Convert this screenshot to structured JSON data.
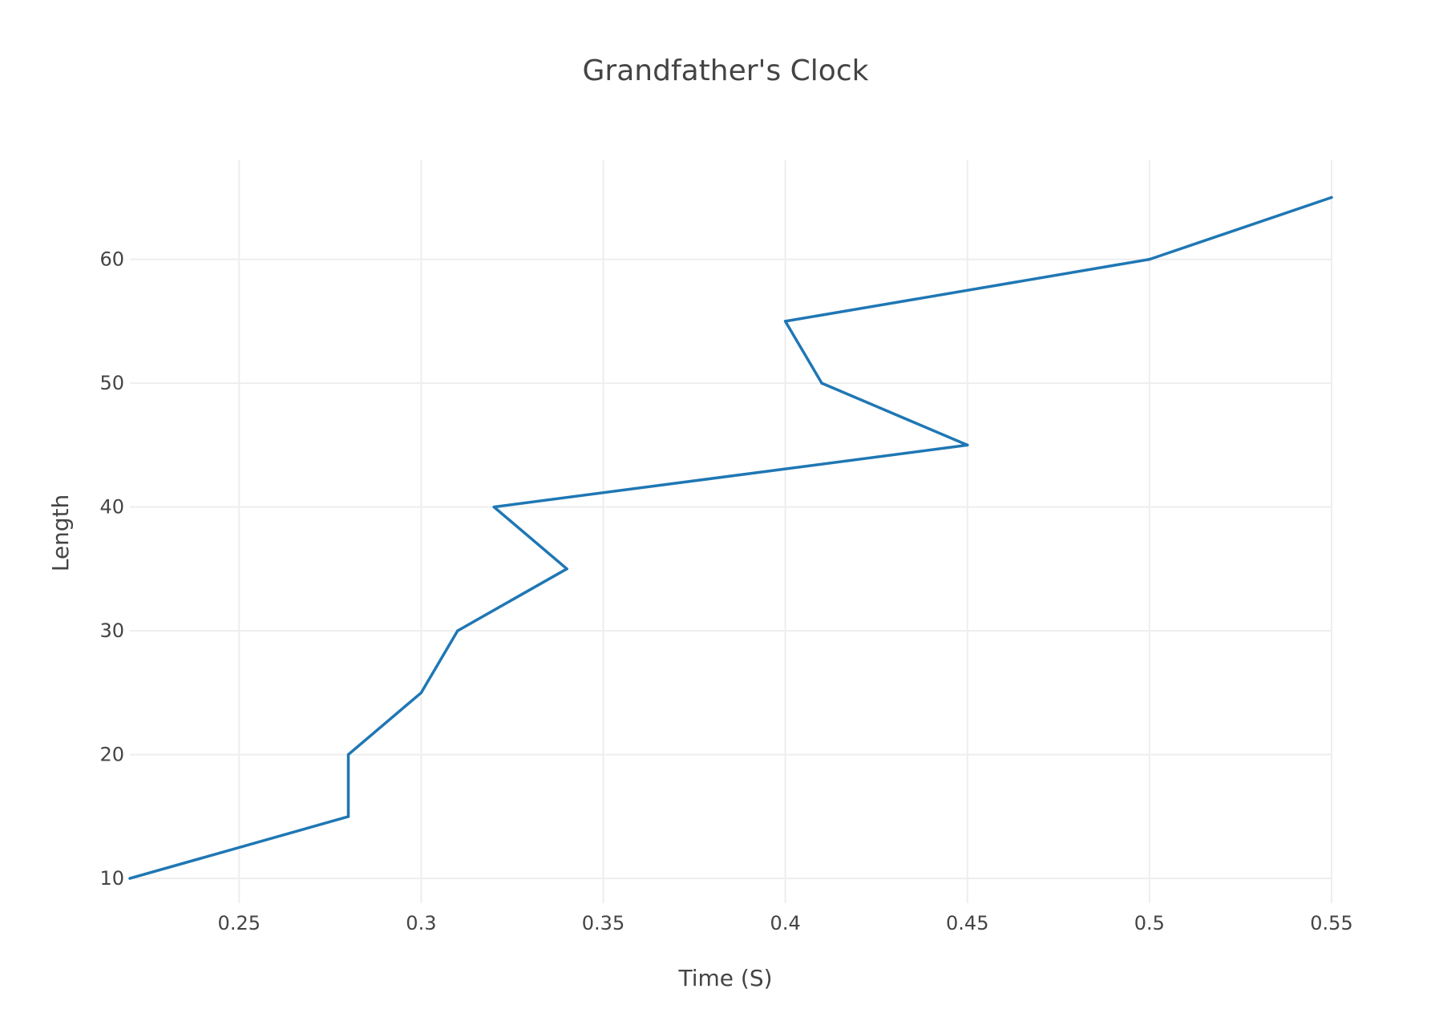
{
  "chart_data": {
    "type": "line",
    "title": "Grandfather's Clock",
    "xlabel": "Time (S)",
    "ylabel": "Length",
    "xlim": [
      0.22,
      0.55
    ],
    "ylim": [
      8,
      68
    ],
    "x_ticks": [
      0.25,
      0.3,
      0.35,
      0.4,
      0.45,
      0.5,
      0.55
    ],
    "x_tick_labels": [
      "0.25",
      "0.3",
      "0.35",
      "0.4",
      "0.45",
      "0.5",
      "0.55"
    ],
    "y_ticks": [
      10,
      20,
      30,
      40,
      50,
      60
    ],
    "y_tick_labels": [
      "10",
      "20",
      "30",
      "40",
      "50",
      "60"
    ],
    "grid": true,
    "series": [
      {
        "color": "#1f77b4",
        "x": [
          0.22,
          0.28,
          0.28,
          0.3,
          0.31,
          0.34,
          0.32,
          0.45,
          0.41,
          0.4,
          0.5,
          0.55
        ],
        "y": [
          10,
          15,
          20,
          25,
          30,
          35,
          40,
          45,
          50,
          55,
          60,
          65
        ]
      }
    ]
  }
}
